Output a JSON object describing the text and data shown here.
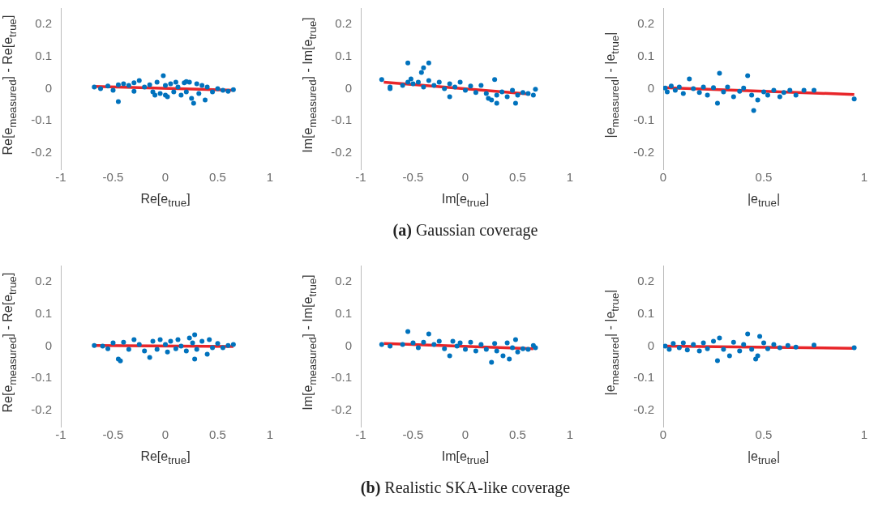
{
  "chart_data": [
    {
      "type": "scatter",
      "xlabel": "Re[e$_{true}$]",
      "ylabel": "Re[e$_{measured}$] - Re[e$_{true}$]",
      "xlim": [
        -1,
        1
      ],
      "xticks": [
        -1,
        -0.5,
        0,
        0.5,
        1
      ],
      "ylim": [
        -0.25,
        0.25
      ],
      "yticks": [
        -0.2,
        -0.1,
        0,
        0.1,
        0.2
      ],
      "grid": false,
      "series": [
        {
          "marker": "circle",
          "color": "#0072bd",
          "x": [
            -0.68,
            -0.62,
            -0.55,
            -0.5,
            -0.45,
            -0.45,
            -0.4,
            -0.35,
            -0.3,
            -0.3,
            -0.25,
            -0.2,
            -0.15,
            -0.12,
            -0.1,
            -0.08,
            -0.05,
            -0.02,
            0.0,
            0.0,
            0.02,
            0.05,
            0.08,
            0.1,
            0.12,
            0.15,
            0.18,
            0.2,
            0.2,
            0.23,
            0.25,
            0.27,
            0.3,
            0.32,
            0.35,
            0.38,
            0.4,
            0.45,
            0.5,
            0.55,
            0.6,
            0.65
          ],
          "values": [
            0.005,
            0.0,
            0.008,
            -0.005,
            0.012,
            -0.04,
            0.015,
            0.01,
            -0.008,
            0.018,
            0.025,
            0.005,
            0.012,
            -0.01,
            -0.02,
            0.02,
            -0.015,
            0.04,
            0.01,
            -0.02,
            -0.025,
            0.015,
            -0.01,
            0.02,
            0.005,
            -0.02,
            0.018,
            -0.01,
            0.022,
            0.02,
            -0.03,
            -0.045,
            0.015,
            -0.015,
            0.01,
            -0.035,
            0.005,
            -0.01,
            0.0,
            -0.005,
            -0.008,
            -0.003
          ]
        },
        {
          "type": "line",
          "color": "#e8262a",
          "x": [
            -0.68,
            0.65
          ],
          "values": [
            0.007,
            -0.005
          ]
        }
      ]
    },
    {
      "type": "scatter",
      "xlabel": "Im[e$_{true}$]",
      "ylabel": "Im[e$_{measured}$] - Im[e$_{true}$]",
      "xlim": [
        -1,
        1
      ],
      "xticks": [
        -1,
        -0.5,
        0,
        0.5,
        1
      ],
      "ylim": [
        -0.25,
        0.25
      ],
      "yticks": [
        -0.2,
        -0.1,
        0,
        0.1,
        0.2
      ],
      "grid": false,
      "annotations": [
        "(a) Gaussian coverage"
      ],
      "series": [
        {
          "marker": "circle",
          "color": "#0072bd",
          "x": [
            -0.8,
            -0.72,
            -0.72,
            -0.6,
            -0.55,
            -0.55,
            -0.52,
            -0.5,
            -0.45,
            -0.42,
            -0.4,
            -0.4,
            -0.35,
            -0.35,
            -0.3,
            -0.25,
            -0.2,
            -0.15,
            -0.15,
            -0.1,
            -0.05,
            0.0,
            0.05,
            0.1,
            0.15,
            0.2,
            0.22,
            0.25,
            0.28,
            0.3,
            0.3,
            0.35,
            0.4,
            0.45,
            0.48,
            0.5,
            0.55,
            0.6,
            0.65,
            0.67
          ],
          "values": [
            0.028,
            0.005,
            0.0,
            0.01,
            0.02,
            0.08,
            0.03,
            0.015,
            0.02,
            0.05,
            0.005,
            0.065,
            0.025,
            0.08,
            0.01,
            0.02,
            0.0,
            -0.025,
            0.015,
            0.005,
            0.02,
            -0.005,
            0.008,
            -0.012,
            0.01,
            -0.015,
            -0.03,
            -0.035,
            0.028,
            -0.02,
            -0.045,
            -0.01,
            -0.025,
            -0.005,
            -0.045,
            -0.02,
            -0.012,
            -0.015,
            -0.02,
            -0.002
          ]
        },
        {
          "type": "line",
          "color": "#e8262a",
          "x": [
            -0.78,
            0.62
          ],
          "values": [
            0.02,
            -0.017
          ]
        }
      ]
    },
    {
      "type": "scatter",
      "xlabel": "|e$_{true}$|",
      "ylabel": "|e$_{measured}$| - |e$_{true}$|",
      "xlim": [
        0,
        1
      ],
      "xticks": [
        0,
        0.5,
        1
      ],
      "ylim": [
        -0.25,
        0.25
      ],
      "yticks": [
        -0.2,
        -0.1,
        0,
        0.1,
        0.2
      ],
      "grid": false,
      "series": [
        {
          "marker": "circle",
          "color": "#0072bd",
          "x": [
            0.01,
            0.02,
            0.04,
            0.06,
            0.08,
            0.1,
            0.13,
            0.15,
            0.18,
            0.2,
            0.22,
            0.25,
            0.27,
            0.28,
            0.3,
            0.32,
            0.35,
            0.38,
            0.4,
            0.42,
            0.44,
            0.45,
            0.47,
            0.5,
            0.52,
            0.55,
            0.58,
            0.6,
            0.63,
            0.66,
            0.7,
            0.75,
            0.95
          ],
          "values": [
            0.002,
            -0.01,
            0.008,
            -0.005,
            0.005,
            -0.015,
            0.03,
            0.0,
            -0.012,
            0.005,
            -0.02,
            0.003,
            -0.045,
            0.048,
            -0.01,
            0.005,
            -0.025,
            -0.008,
            0.002,
            0.04,
            -0.02,
            -0.068,
            -0.035,
            -0.01,
            -0.02,
            -0.005,
            -0.025,
            -0.012,
            -0.005,
            -0.02,
            -0.005,
            -0.005,
            -0.032
          ]
        },
        {
          "type": "line",
          "color": "#e8262a",
          "x": [
            0,
            0.95
          ],
          "values": [
            0.003,
            -0.018
          ]
        }
      ]
    },
    {
      "type": "scatter",
      "xlabel": "Re[e$_{true}$]",
      "ylabel": "Re[e$_{measured}$] - Re[e$_{true}$]",
      "xlim": [
        -1,
        1
      ],
      "xticks": [
        -1,
        -0.5,
        0,
        0.5,
        1
      ],
      "ylim": [
        -0.25,
        0.25
      ],
      "yticks": [
        -0.2,
        -0.1,
        0,
        0.1,
        0.2
      ],
      "grid": false,
      "series": [
        {
          "marker": "circle",
          "color": "#0072bd",
          "x": [
            -0.68,
            -0.6,
            -0.55,
            -0.5,
            -0.45,
            -0.43,
            -0.4,
            -0.35,
            -0.3,
            -0.25,
            -0.2,
            -0.15,
            -0.12,
            -0.08,
            -0.05,
            0.0,
            0.02,
            0.05,
            0.1,
            0.12,
            0.15,
            0.2,
            0.23,
            0.26,
            0.28,
            0.28,
            0.3,
            0.35,
            0.4,
            0.42,
            0.45,
            0.5,
            0.55,
            0.6,
            0.65
          ],
          "values": [
            0.002,
            0.0,
            -0.008,
            0.01,
            -0.04,
            -0.046,
            0.012,
            -0.01,
            0.02,
            0.005,
            -0.015,
            -0.035,
            0.015,
            -0.01,
            0.02,
            0.005,
            -0.018,
            0.015,
            -0.008,
            0.02,
            0.0,
            -0.015,
            0.025,
            0.01,
            0.035,
            -0.04,
            -0.01,
            0.015,
            -0.025,
            0.02,
            -0.005,
            0.008,
            -0.005,
            0.002,
            0.005
          ]
        },
        {
          "type": "line",
          "color": "#e8262a",
          "x": [
            -0.68,
            0.65
          ],
          "values": [
            0.002,
            -0.001
          ]
        }
      ]
    },
    {
      "type": "scatter",
      "xlabel": "Im[e$_{true}$]",
      "ylabel": "Im[e$_{measured}$] - Im[e$_{true}$]",
      "xlim": [
        -1,
        1
      ],
      "xticks": [
        -1,
        -0.5,
        0,
        0.5,
        1
      ],
      "ylim": [
        -0.25,
        0.25
      ],
      "yticks": [
        -0.2,
        -0.1,
        0,
        0.1,
        0.2
      ],
      "grid": false,
      "annotations": [
        "(b) Realistic SKA-like coverage"
      ],
      "series": [
        {
          "marker": "circle",
          "color": "#0072bd",
          "x": [
            -0.8,
            -0.72,
            -0.6,
            -0.55,
            -0.5,
            -0.45,
            -0.4,
            -0.35,
            -0.3,
            -0.25,
            -0.2,
            -0.15,
            -0.12,
            -0.08,
            -0.05,
            0.0,
            0.05,
            0.1,
            0.15,
            0.2,
            0.25,
            0.28,
            0.3,
            0.36,
            0.4,
            0.42,
            0.45,
            0.48,
            0.5,
            0.55,
            0.6,
            0.65,
            0.67
          ],
          "values": [
            0.005,
            0.0,
            0.005,
            0.045,
            0.01,
            -0.005,
            0.012,
            0.038,
            0.005,
            0.015,
            -0.008,
            -0.03,
            0.015,
            0.0,
            0.01,
            -0.01,
            0.012,
            -0.015,
            0.005,
            -0.01,
            -0.05,
            0.008,
            -0.015,
            -0.03,
            0.01,
            -0.04,
            -0.005,
            0.02,
            -0.018,
            -0.008,
            -0.01,
            0.002,
            -0.005
          ]
        },
        {
          "type": "line",
          "color": "#e8262a",
          "x": [
            -0.78,
            0.65
          ],
          "values": [
            0.008,
            -0.008
          ]
        }
      ]
    },
    {
      "type": "scatter",
      "xlabel": "|e$_{true}$|",
      "ylabel": "|e$_{measured}$| - |e$_{true}$|",
      "xlim": [
        0,
        1
      ],
      "xticks": [
        0,
        0.5,
        1
      ],
      "ylim": [
        -0.25,
        0.25
      ],
      "yticks": [
        -0.2,
        -0.1,
        0,
        0.1,
        0.2
      ],
      "grid": false,
      "series": [
        {
          "marker": "circle",
          "color": "#0072bd",
          "x": [
            0.01,
            0.03,
            0.05,
            0.08,
            0.1,
            0.12,
            0.15,
            0.18,
            0.2,
            0.22,
            0.25,
            0.27,
            0.28,
            0.3,
            0.33,
            0.35,
            0.38,
            0.4,
            0.42,
            0.44,
            0.46,
            0.47,
            0.48,
            0.5,
            0.52,
            0.55,
            0.58,
            0.62,
            0.66,
            0.75,
            0.95
          ],
          "values": [
            0.0,
            -0.01,
            0.008,
            -0.005,
            0.01,
            -0.012,
            0.005,
            -0.015,
            0.01,
            -0.008,
            0.015,
            -0.045,
            0.025,
            -0.01,
            -0.03,
            0.012,
            -0.015,
            0.005,
            0.038,
            -0.01,
            -0.04,
            -0.03,
            0.03,
            0.01,
            -0.008,
            0.005,
            -0.005,
            0.002,
            -0.003,
            0.003,
            -0.005
          ]
        },
        {
          "type": "line",
          "color": "#e8262a",
          "x": [
            0,
            0.95
          ],
          "values": [
            0.0,
            -0.007
          ]
        }
      ]
    }
  ]
}
